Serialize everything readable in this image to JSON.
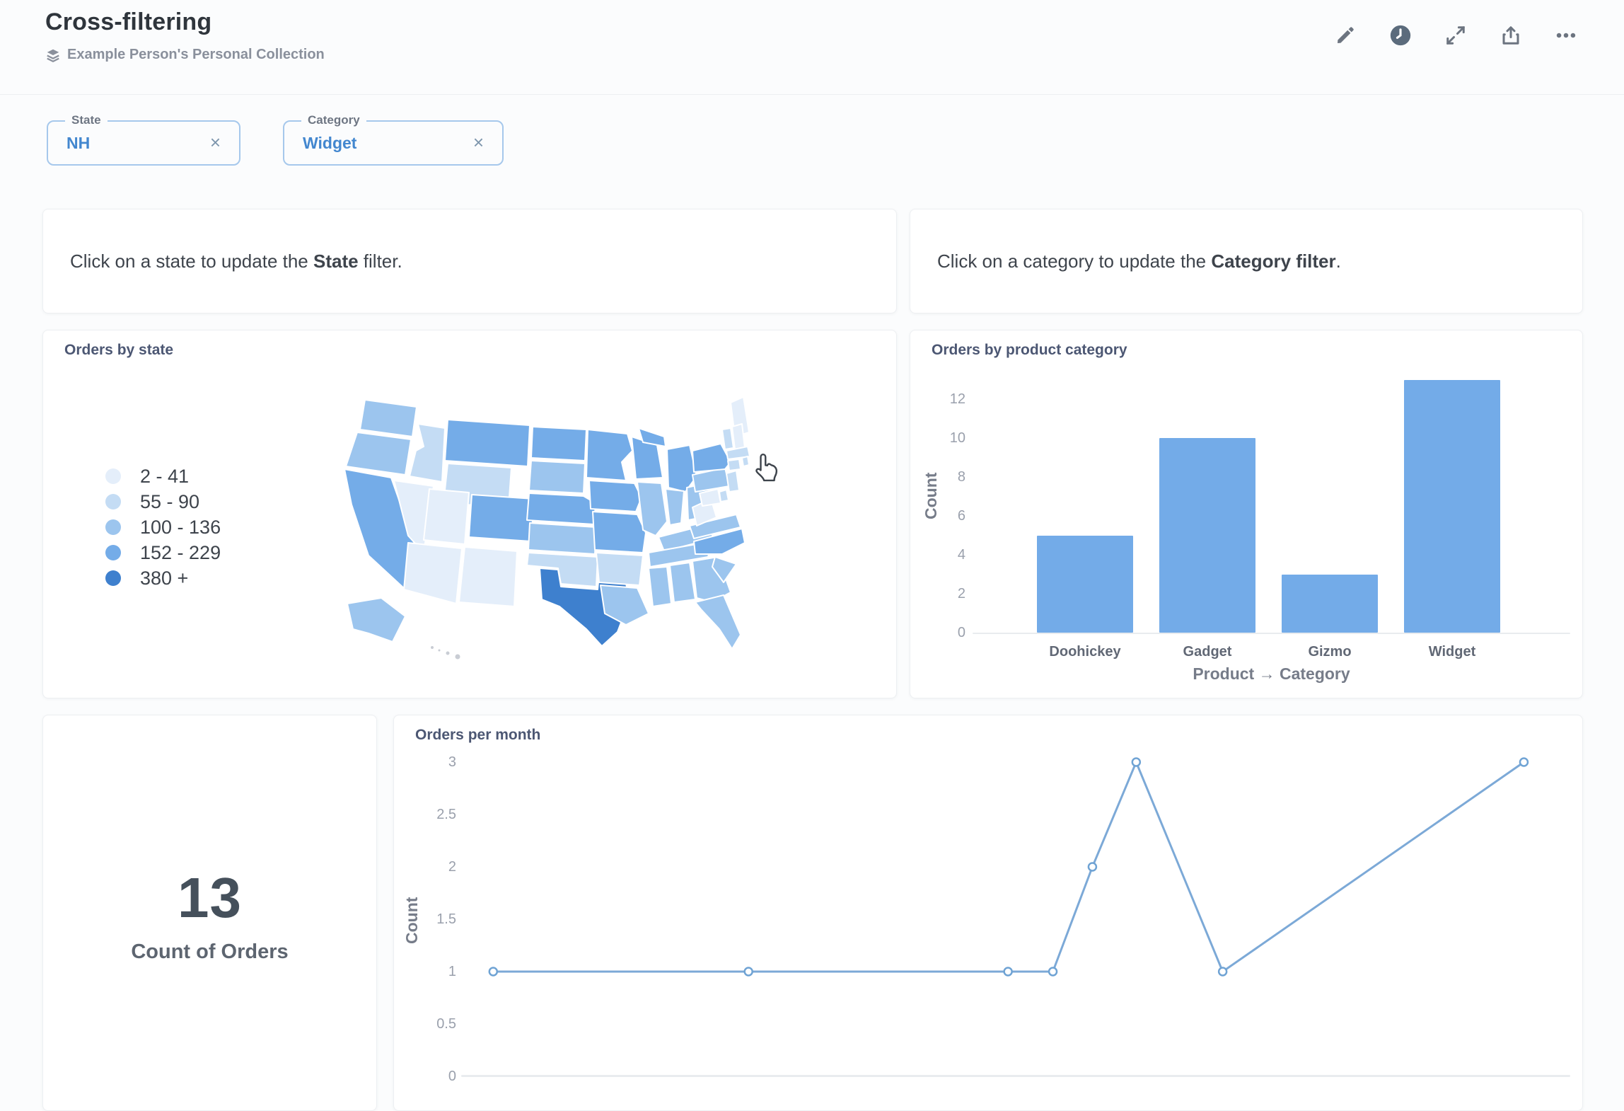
{
  "header": {
    "title": "Cross-filtering",
    "collection": "Example Person's Personal Collection"
  },
  "filters": {
    "state": {
      "label": "State",
      "value": "NH",
      "clear": "×"
    },
    "category": {
      "label": "Category",
      "value": "Widget",
      "clear": "×"
    }
  },
  "text_cards": {
    "state": {
      "prefix": "Click on a state to update the ",
      "bold": "State",
      "suffix": " filter."
    },
    "category": {
      "prefix": "Click on a category to update the ",
      "bold": "Category filter",
      "suffix": "."
    }
  },
  "scalar_card": {
    "value": "13",
    "label": "Count of Orders"
  },
  "colors": {
    "brand_blue": "#509EE3",
    "bar_fill": "#73ABE8",
    "line_stroke": "#7CA9D7",
    "marker_stroke": "#6FA3D4",
    "filter_border": "#A6C8EC",
    "filter_value_text": "#4387CF",
    "map_palette": [
      "#E4EEFA",
      "#C4DCF4",
      "#9CC5EE",
      "#74ACE8",
      "#3E80CE"
    ],
    "map_no_data": "#C9CDD4"
  },
  "chart_data": [
    {
      "type": "heatmap",
      "subtype": "us-state-choropleth",
      "title": "Orders by state",
      "legend_position": "left",
      "legend": [
        {
          "label": "2 - 41"
        },
        {
          "label": "55 - 90"
        },
        {
          "label": "100 - 136"
        },
        {
          "label": "152 - 229"
        },
        {
          "label": "380 +"
        }
      ],
      "states": {
        "WA": 3,
        "OR": 3,
        "CA": 4,
        "NV": 1,
        "ID": 2,
        "MT": 4,
        "WY": 2,
        "UT": 1,
        "CO": 4,
        "AZ": 1,
        "NM": 1,
        "ND": 4,
        "SD": 3,
        "NE": 4,
        "KS": 3,
        "OK": 2,
        "TX": 5,
        "MN": 4,
        "IA": 4,
        "MO": 4,
        "AR": 2,
        "LA": 3,
        "WI": 4,
        "IL": 3,
        "MI": 4,
        "IN": 3,
        "OH": 3,
        "KY": 3,
        "TN": 3,
        "MS": 3,
        "AL": 3,
        "GA": 3,
        "FL": 3,
        "SC": 3,
        "NC": 4,
        "VA": 3,
        "WV": 1,
        "PA": 3,
        "NY": 4,
        "NJ": 2,
        "MD": 1,
        "DE": 2,
        "ME": 1,
        "NH": 1,
        "VT": 2,
        "MA": 2,
        "CT": 2,
        "RI": 2,
        "AK": 3,
        "HI": 0
      }
    },
    {
      "type": "bar",
      "title": "Orders by product category",
      "categories": [
        "Doohickey",
        "Gadget",
        "Gizmo",
        "Widget"
      ],
      "values": [
        5,
        10,
        3,
        13
      ],
      "xlabel": "Product → Category",
      "ylabel": "Count",
      "ylim": [
        0,
        13
      ],
      "yticks": [
        0,
        2,
        4,
        6,
        8,
        10,
        12
      ],
      "grid": false,
      "legend_position": "none"
    },
    {
      "type": "line",
      "title": "Orders per month",
      "ylabel": "Count",
      "xlabel": "",
      "ylim": [
        0,
        3
      ],
      "yticks": [
        0,
        0.5,
        1,
        1.5,
        2,
        2.5,
        3
      ],
      "values": [
        1,
        1,
        1,
        1,
        2,
        3,
        1,
        3
      ],
      "x_relative": [
        0.03,
        0.269,
        0.512,
        0.554,
        0.591,
        0.632,
        0.713,
        0.995
      ],
      "x_tick_labels_visible": false,
      "grid": false,
      "legend_position": "none"
    }
  ]
}
